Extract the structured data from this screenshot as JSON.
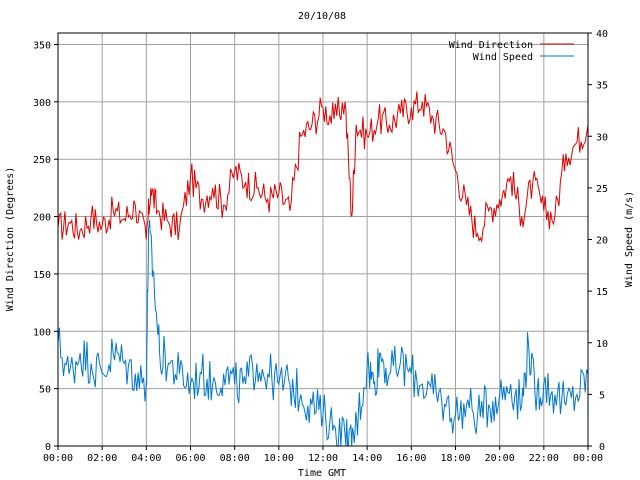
{
  "chart_data": {
    "type": "line",
    "title": "20/10/08",
    "xlabel": "Time GMT",
    "ylabel_left": "Wind Direction (Degrees)",
    "ylabel_right": "Wind Speed (m/s)",
    "ylim_left": [
      0,
      360
    ],
    "ylim_right": [
      0,
      40
    ],
    "yticks_left": [
      0,
      50,
      100,
      150,
      200,
      250,
      300,
      350
    ],
    "yticks_right": [
      0,
      5,
      10,
      15,
      20,
      25,
      30,
      35,
      40
    ],
    "xlim_hours": [
      0,
      24
    ],
    "xticks": [
      "00:00",
      "02:00",
      "04:00",
      "06:00",
      "08:00",
      "10:00",
      "12:00",
      "14:00",
      "16:00",
      "18:00",
      "20:00",
      "22:00",
      "00:00"
    ],
    "grid": true,
    "legend_position": "top-right",
    "series": [
      {
        "name": "Wind Direction",
        "axis": "left",
        "color": "#dd0000",
        "x": [
          0.0,
          0.5,
          1.0,
          1.5,
          2.0,
          2.5,
          3.0,
          3.5,
          4.0,
          4.2,
          4.5,
          5.0,
          5.5,
          6.0,
          6.5,
          7.0,
          7.5,
          8.0,
          8.5,
          9.0,
          9.5,
          10.0,
          10.5,
          11.0,
          11.5,
          12.0,
          12.5,
          13.0,
          13.3,
          13.5,
          14.0,
          14.5,
          15.0,
          15.5,
          16.0,
          16.5,
          17.0,
          17.5,
          18.0,
          18.5,
          19.0,
          19.5,
          20.0,
          20.5,
          21.0,
          21.5,
          22.0,
          22.5,
          23.0,
          23.5,
          24.0
        ],
        "values": [
          190,
          195,
          188,
          200,
          192,
          205,
          198,
          210,
          180,
          225,
          205,
          195,
          190,
          235,
          215,
          225,
          210,
          240,
          230,
          225,
          215,
          220,
          205,
          270,
          280,
          295,
          285,
          300,
          200,
          280,
          270,
          285,
          280,
          290,
          295,
          300,
          285,
          275,
          240,
          210,
          185,
          205,
          215,
          235,
          200,
          230,
          205,
          200,
          255,
          265,
          280
        ]
      },
      {
        "name": "Wind Speed",
        "axis": "right",
        "color": "#0077cc",
        "x": [
          0.0,
          0.5,
          1.0,
          1.5,
          2.0,
          2.5,
          3.0,
          3.5,
          4.0,
          4.1,
          4.3,
          4.6,
          5.0,
          5.5,
          6.0,
          6.5,
          7.0,
          7.5,
          8.0,
          8.5,
          9.0,
          9.5,
          10.0,
          10.5,
          11.0,
          11.5,
          12.0,
          12.5,
          13.0,
          13.3,
          13.6,
          14.0,
          14.3,
          14.6,
          15.0,
          15.5,
          16.0,
          16.5,
          17.0,
          17.5,
          18.0,
          18.5,
          19.0,
          19.5,
          20.0,
          20.5,
          21.0,
          21.3,
          21.6,
          22.0,
          22.5,
          23.0,
          23.5,
          24.0
        ],
        "values": [
          10,
          7,
          9,
          8,
          7,
          9,
          8,
          7,
          6,
          21,
          17,
          9,
          8,
          7,
          6,
          7,
          6,
          7,
          6,
          6,
          8,
          7,
          6,
          6,
          5,
          4,
          3,
          2,
          1,
          0,
          3,
          8,
          6,
          9,
          7,
          8,
          7,
          6,
          5,
          4,
          3,
          4,
          3,
          4,
          5,
          6,
          4,
          10,
          5,
          6,
          5,
          4,
          5,
          7
        ]
      }
    ]
  }
}
